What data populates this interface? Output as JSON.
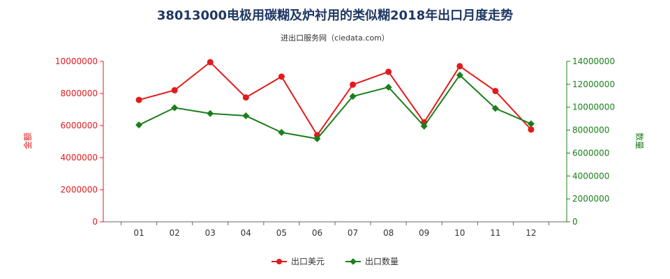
{
  "title": "38013000电极用碳糊及炉衬用的类似糊2018年出口月度走势",
  "subtitle": "进出口服务网（ciedata.com）",
  "chart_data": {
    "type": "line",
    "categories": [
      "01",
      "02",
      "03",
      "04",
      "05",
      "06",
      "07",
      "08",
      "09",
      "10",
      "11",
      "12"
    ],
    "ylabel_left": "金额",
    "ylabel_right": "数量",
    "ylim_left": [
      0,
      10000000
    ],
    "ylim_right": [
      0,
      14000000
    ],
    "yticks_left": [
      "0",
      "2000000",
      "4000000",
      "6000000",
      "8000000",
      "10000000"
    ],
    "yticks_right": [
      "0",
      "2000000",
      "4000000",
      "6000000",
      "8000000",
      "10000000",
      "12000000",
      "14000000"
    ],
    "grid": false,
    "legend_position": "bottom",
    "series": [
      {
        "name": "出口美元",
        "axis": "left",
        "color": "#e31a1c",
        "marker": "circle",
        "values": [
          7600000,
          8200000,
          9950000,
          7750000,
          9050000,
          5400000,
          8550000,
          9350000,
          6200000,
          9700000,
          8150000,
          5750000
        ]
      },
      {
        "name": "出口数量",
        "axis": "right",
        "color": "#1a7f1a",
        "marker": "diamond",
        "values": [
          8450000,
          9950000,
          9450000,
          9250000,
          7800000,
          7250000,
          10950000,
          11750000,
          8350000,
          12800000,
          9900000,
          8550000
        ]
      }
    ]
  }
}
